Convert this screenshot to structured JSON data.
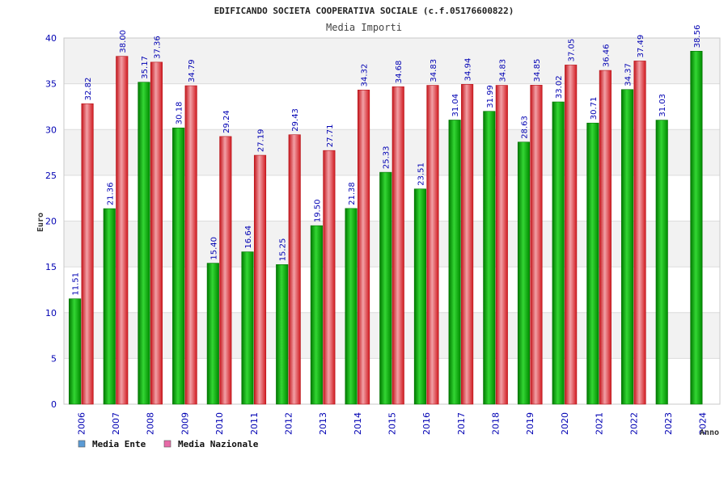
{
  "chart_data": {
    "type": "bar",
    "title": "EDIFICANDO SOCIETA COOPERATIVA SOCIALE (c.f.05176600822)",
    "subtitle": "Media Importi",
    "xlabel": "Anno",
    "ylabel": "Euro",
    "ylim": [
      0,
      40
    ],
    "yticks": [
      0,
      5,
      10,
      15,
      20,
      25,
      30,
      35,
      40
    ],
    "grid": true,
    "legend_position": "bottom-left",
    "categories": [
      "2006",
      "2007",
      "2008",
      "2009",
      "2010",
      "2011",
      "2012",
      "2013",
      "2014",
      "2015",
      "2016",
      "2017",
      "2018",
      "2019",
      "2020",
      "2021",
      "2022",
      "2023",
      "2024"
    ],
    "series": [
      {
        "name": "Media Ente",
        "color": "#00aa00",
        "legend_color": "#5b9bd5",
        "values": [
          11.51,
          21.36,
          35.17,
          30.18,
          15.4,
          16.64,
          15.25,
          19.5,
          21.38,
          25.33,
          23.51,
          31.04,
          31.99,
          28.63,
          33.02,
          30.71,
          34.37,
          31.03,
          38.56
        ],
        "labels": [
          "11.51",
          "21.36",
          "35.17",
          "30.18",
          "15.40",
          "16.64",
          "15.25",
          "19.50",
          "21.38",
          "25.33",
          "23.51",
          "31.04",
          "31.99",
          "28.63",
          "33.02",
          "30.71",
          "34.37",
          "31.03",
          "38.56"
        ]
      },
      {
        "name": "Media Nazionale",
        "color": "#e8232a",
        "legend_color": "#e76aa7",
        "values": [
          32.82,
          38.0,
          37.36,
          34.79,
          29.24,
          27.19,
          29.43,
          27.71,
          34.32,
          34.68,
          34.83,
          34.94,
          34.83,
          34.85,
          37.05,
          36.46,
          37.49,
          null,
          null
        ],
        "labels": [
          "32.82",
          "38.00",
          "37.36",
          "34.79",
          "29.24",
          "27.19",
          "29.43",
          "27.71",
          "34.32",
          "34.68",
          "34.83",
          "34.94",
          "34.83",
          "34.85",
          "37.05",
          "36.46",
          "37.49",
          null,
          null
        ]
      }
    ]
  }
}
